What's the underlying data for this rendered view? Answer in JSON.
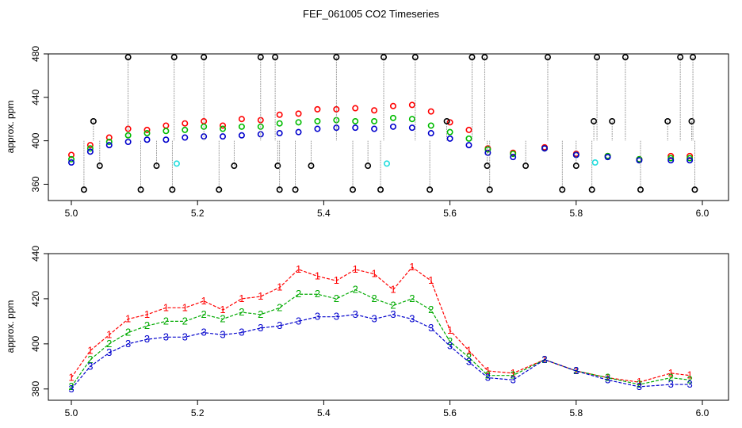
{
  "figure": {
    "title": "FEF_061005  CO2 Timeseries"
  },
  "chart_data": [
    {
      "type": "scatter",
      "panel": "top",
      "title": "",
      "xlabel": "",
      "ylabel": "approx. ppm",
      "xlim": [
        5.0,
        6.0
      ],
      "ylim": [
        345,
        480
      ],
      "x_ticks": [
        "5.0",
        "5.2",
        "5.4",
        "5.6",
        "5.8",
        "6.0"
      ],
      "x_tick_values": [
        5.0,
        5.2,
        5.4,
        5.6,
        5.8,
        6.0
      ],
      "y_ticks": [
        "360",
        "400",
        "440",
        "480"
      ],
      "y_tick_values": [
        360,
        400,
        440,
        480
      ],
      "series": [
        {
          "color": "#ff0000",
          "marker": "circle",
          "x": [
            5.0,
            5.03,
            5.06,
            5.09,
            5.12,
            5.15,
            5.18,
            5.21,
            5.24,
            5.27,
            5.3,
            5.33,
            5.36,
            5.39,
            5.42,
            5.45,
            5.48,
            5.51,
            5.54,
            5.57,
            5.6,
            5.63,
            5.66,
            5.7,
            5.75,
            5.8,
            5.85,
            5.9,
            5.95,
            5.98
          ],
          "y": [
            387,
            396,
            403,
            411,
            410,
            414,
            416,
            418,
            414,
            420,
            419,
            424,
            425,
            429,
            429,
            430,
            428,
            432,
            433,
            427,
            417,
            410,
            393,
            389,
            394,
            388,
            386,
            383,
            386,
            386
          ]
        },
        {
          "color": "#00bb00",
          "marker": "circle",
          "x": [
            5.0,
            5.03,
            5.06,
            5.09,
            5.12,
            5.15,
            5.18,
            5.21,
            5.24,
            5.27,
            5.3,
            5.33,
            5.36,
            5.39,
            5.42,
            5.45,
            5.48,
            5.51,
            5.54,
            5.57,
            5.6,
            5.63,
            5.66,
            5.7,
            5.75,
            5.8,
            5.85,
            5.9,
            5.95,
            5.98
          ],
          "y": [
            383,
            393,
            399,
            405,
            407,
            409,
            410,
            413,
            411,
            413,
            413,
            416,
            417,
            418,
            419,
            418,
            418,
            421,
            420,
            414,
            408,
            402,
            392,
            388,
            393,
            387,
            386,
            383,
            384,
            384
          ]
        },
        {
          "color": "#0000cc",
          "marker": "circle",
          "x": [
            5.0,
            5.03,
            5.06,
            5.09,
            5.12,
            5.15,
            5.18,
            5.21,
            5.24,
            5.27,
            5.3,
            5.33,
            5.36,
            5.39,
            5.42,
            5.45,
            5.48,
            5.51,
            5.54,
            5.57,
            5.6,
            5.63,
            5.66,
            5.7,
            5.75,
            5.8,
            5.85,
            5.9,
            5.95,
            5.98
          ],
          "y": [
            380,
            390,
            396,
            399,
            401,
            401,
            403,
            404,
            404,
            405,
            406,
            407,
            408,
            411,
            412,
            412,
            411,
            413,
            412,
            407,
            402,
            396,
            389,
            385,
            393,
            387,
            385,
            382,
            382,
            382
          ]
        },
        {
          "color": "#000000",
          "marker": "circle",
          "x": [
            5.02,
            5.035,
            5.045,
            5.09,
            5.11,
            5.135,
            5.16,
            5.163,
            5.21,
            5.234,
            5.258,
            5.3,
            5.323,
            5.327,
            5.33,
            5.355,
            5.38,
            5.42,
            5.446,
            5.47,
            5.49,
            5.495,
            5.545,
            5.568,
            5.595,
            5.635,
            5.655,
            5.659,
            5.663,
            5.72,
            5.755,
            5.778,
            5.8,
            5.825,
            5.828,
            5.833,
            5.857,
            5.878,
            5.902,
            5.945,
            5.965,
            5.983,
            5.985,
            5.988
          ],
          "y": [
            355,
            418,
            377,
            477,
            355,
            377,
            355,
            477,
            477,
            355,
            377,
            477,
            477,
            377,
            355,
            355,
            377,
            477,
            355,
            377,
            355,
            477,
            477,
            355,
            418,
            477,
            477,
            377,
            355,
            377,
            477,
            355,
            377,
            355,
            418,
            477,
            418,
            477,
            355,
            418,
            477,
            418,
            477,
            355
          ]
        },
        {
          "color": "#22dddd",
          "marker": "circle",
          "x": [
            5.167,
            5.5,
            5.83
          ],
          "y": [
            379,
            379,
            380
          ]
        }
      ]
    },
    {
      "type": "line",
      "panel": "bottom",
      "title": "",
      "xlabel": "",
      "ylabel": "approx. ppm",
      "xlim": [
        5.0,
        6.0
      ],
      "ylim": [
        375,
        440
      ],
      "x_ticks": [
        "5.0",
        "5.2",
        "5.4",
        "5.6",
        "5.8",
        "6.0"
      ],
      "x_tick_values": [
        5.0,
        5.2,
        5.4,
        5.6,
        5.8,
        6.0
      ],
      "y_ticks": [
        "380",
        "400",
        "420",
        "440"
      ],
      "y_tick_values": [
        380,
        400,
        420,
        440
      ],
      "series": [
        {
          "color": "#ff0000",
          "symbol": "1",
          "x": [
            5.0,
            5.03,
            5.06,
            5.09,
            5.12,
            5.15,
            5.18,
            5.21,
            5.24,
            5.27,
            5.3,
            5.33,
            5.36,
            5.39,
            5.42,
            5.45,
            5.48,
            5.51,
            5.54,
            5.57,
            5.6,
            5.63,
            5.66,
            5.7,
            5.75,
            5.8,
            5.85,
            5.9,
            5.95,
            5.98
          ],
          "y": [
            385,
            397,
            404,
            411,
            413,
            416,
            416,
            419,
            415,
            420,
            421,
            425,
            433,
            430,
            428,
            433,
            431,
            424,
            434,
            428,
            406,
            397,
            388,
            387,
            393,
            388,
            385,
            383,
            387,
            386
          ]
        },
        {
          "color": "#00aa00",
          "symbol": "2",
          "x": [
            5.0,
            5.03,
            5.06,
            5.09,
            5.12,
            5.15,
            5.18,
            5.21,
            5.24,
            5.27,
            5.3,
            5.33,
            5.36,
            5.39,
            5.42,
            5.45,
            5.48,
            5.51,
            5.54,
            5.57,
            5.6,
            5.63,
            5.66,
            5.7,
            5.75,
            5.8,
            5.85,
            5.9,
            5.95,
            5.98
          ],
          "y": [
            381,
            393,
            400,
            405,
            408,
            410,
            410,
            413,
            411,
            414,
            413,
            416,
            422,
            422,
            420,
            424,
            420,
            417,
            420,
            415,
            401,
            394,
            386,
            386,
            393,
            388,
            385,
            382,
            385,
            384
          ]
        },
        {
          "color": "#0000cc",
          "symbol": "3",
          "x": [
            5.0,
            5.03,
            5.06,
            5.09,
            5.12,
            5.15,
            5.18,
            5.21,
            5.24,
            5.27,
            5.3,
            5.33,
            5.36,
            5.39,
            5.42,
            5.45,
            5.48,
            5.51,
            5.54,
            5.57,
            5.6,
            5.63,
            5.66,
            5.7,
            5.75,
            5.8,
            5.85,
            5.9,
            5.95,
            5.98
          ],
          "y": [
            380,
            390,
            396,
            400,
            402,
            403,
            403,
            405,
            404,
            405,
            407,
            408,
            410,
            412,
            412,
            413,
            411,
            413,
            411,
            407,
            399,
            392,
            385,
            384,
            393,
            388,
            384,
            381,
            382,
            382
          ]
        }
      ]
    }
  ]
}
